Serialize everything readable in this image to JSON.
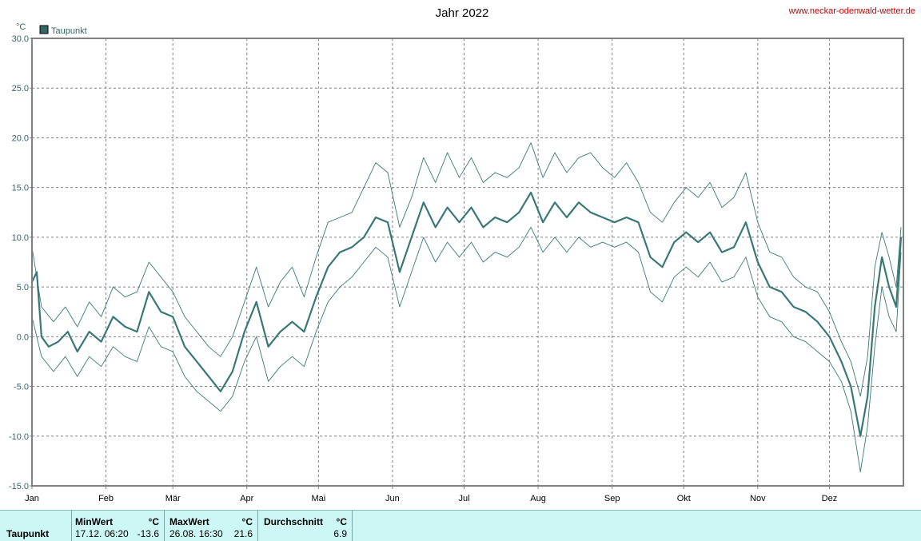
{
  "site": "www.neckar-odenwald-wetter.de",
  "chart_data": {
    "type": "line",
    "title": "Jahr 2022",
    "unit": "°C",
    "legend": [
      "Taupunkt"
    ],
    "legend_position": "top-left",
    "grid": true,
    "ylim": [
      -15,
      30
    ],
    "yticks": [
      "30.0",
      "25.0",
      "20.0",
      "15.0",
      "10.0",
      "5.0",
      "0.0",
      "-5.0",
      "-10.0",
      "-15.0"
    ],
    "months": [
      "Jan",
      "Feb",
      "Mär",
      "Apr",
      "Mai",
      "Jun",
      "Jul",
      "Aug",
      "Sep",
      "Okt",
      "Nov",
      "Dez"
    ],
    "colors": {
      "series": "#3a7878",
      "grid": "#808080"
    },
    "series": [
      {
        "name": "Taupunkt",
        "values": [
          [
            1,
            5.5
          ],
          [
            3,
            6.5
          ],
          [
            5,
            0.0
          ],
          [
            8,
            -1.0
          ],
          [
            12,
            -0.5
          ],
          [
            16,
            0.5
          ],
          [
            20,
            -1.5
          ],
          [
            25,
            0.5
          ],
          [
            30,
            -0.5
          ],
          [
            35,
            2.0
          ],
          [
            40,
            1.0
          ],
          [
            45,
            0.5
          ],
          [
            50,
            4.5
          ],
          [
            55,
            2.5
          ],
          [
            60,
            2.0
          ],
          [
            65,
            -1.0
          ],
          [
            70,
            -2.5
          ],
          [
            75,
            -4.0
          ],
          [
            80,
            -5.5
          ],
          [
            85,
            -3.5
          ],
          [
            90,
            0.5
          ],
          [
            95,
            3.5
          ],
          [
            100,
            -1.0
          ],
          [
            105,
            0.5
          ],
          [
            110,
            1.5
          ],
          [
            115,
            0.5
          ],
          [
            120,
            4.0
          ],
          [
            125,
            7.0
          ],
          [
            130,
            8.5
          ],
          [
            135,
            9.0
          ],
          [
            140,
            10.0
          ],
          [
            145,
            12.0
          ],
          [
            150,
            11.5
          ],
          [
            155,
            6.5
          ],
          [
            160,
            10.0
          ],
          [
            165,
            13.5
          ],
          [
            170,
            11.0
          ],
          [
            175,
            13.0
          ],
          [
            180,
            11.5
          ],
          [
            185,
            13.0
          ],
          [
            190,
            11.0
          ],
          [
            195,
            12.0
          ],
          [
            200,
            11.5
          ],
          [
            205,
            12.5
          ],
          [
            210,
            14.5
          ],
          [
            215,
            11.5
          ],
          [
            220,
            13.5
          ],
          [
            225,
            12.0
          ],
          [
            230,
            13.5
          ],
          [
            235,
            12.5
          ],
          [
            240,
            12.0
          ],
          [
            245,
            11.5
          ],
          [
            250,
            12.0
          ],
          [
            255,
            11.5
          ],
          [
            260,
            8.0
          ],
          [
            265,
            7.0
          ],
          [
            270,
            9.5
          ],
          [
            275,
            10.5
          ],
          [
            280,
            9.5
          ],
          [
            285,
            10.5
          ],
          [
            290,
            8.5
          ],
          [
            295,
            9.0
          ],
          [
            300,
            11.5
          ],
          [
            305,
            7.5
          ],
          [
            310,
            5.0
          ],
          [
            315,
            4.5
          ],
          [
            320,
            3.0
          ],
          [
            325,
            2.5
          ],
          [
            330,
            1.5
          ],
          [
            335,
            0.0
          ],
          [
            340,
            -2.5
          ],
          [
            344,
            -5.0
          ],
          [
            348,
            -10.0
          ],
          [
            351,
            -6.0
          ],
          [
            354,
            3.0
          ],
          [
            357,
            8.0
          ],
          [
            360,
            5.0
          ],
          [
            363,
            3.0
          ],
          [
            365,
            10.0
          ]
        ]
      },
      {
        "name": "",
        "values": [
          [
            1,
            9.0
          ],
          [
            5,
            3.0
          ],
          [
            10,
            1.5
          ],
          [
            15,
            3.0
          ],
          [
            20,
            1.0
          ],
          [
            25,
            3.5
          ],
          [
            30,
            2.0
          ],
          [
            35,
            5.0
          ],
          [
            40,
            4.0
          ],
          [
            45,
            4.5
          ],
          [
            50,
            7.5
          ],
          [
            55,
            6.0
          ],
          [
            60,
            4.5
          ],
          [
            65,
            2.0
          ],
          [
            70,
            0.5
          ],
          [
            75,
            -1.0
          ],
          [
            80,
            -2.0
          ],
          [
            85,
            0.0
          ],
          [
            90,
            3.5
          ],
          [
            95,
            7.0
          ],
          [
            100,
            3.0
          ],
          [
            105,
            5.5
          ],
          [
            110,
            7.0
          ],
          [
            115,
            4.0
          ],
          [
            120,
            8.0
          ],
          [
            125,
            11.5
          ],
          [
            130,
            12.0
          ],
          [
            135,
            12.5
          ],
          [
            140,
            15.0
          ],
          [
            145,
            17.5
          ],
          [
            150,
            16.5
          ],
          [
            155,
            11.0
          ],
          [
            160,
            14.0
          ],
          [
            165,
            18.0
          ],
          [
            170,
            15.5
          ],
          [
            175,
            18.5
          ],
          [
            180,
            16.0
          ],
          [
            185,
            18.0
          ],
          [
            190,
            15.5
          ],
          [
            195,
            16.5
          ],
          [
            200,
            16.0
          ],
          [
            205,
            17.0
          ],
          [
            210,
            19.5
          ],
          [
            215,
            16.0
          ],
          [
            220,
            18.5
          ],
          [
            225,
            16.5
          ],
          [
            230,
            18.0
          ],
          [
            235,
            18.5
          ],
          [
            240,
            17.0
          ],
          [
            245,
            16.0
          ],
          [
            250,
            17.5
          ],
          [
            255,
            15.5
          ],
          [
            260,
            12.5
          ],
          [
            265,
            11.5
          ],
          [
            270,
            13.5
          ],
          [
            275,
            15.0
          ],
          [
            280,
            14.0
          ],
          [
            285,
            15.5
          ],
          [
            290,
            13.0
          ],
          [
            295,
            14.0
          ],
          [
            300,
            16.5
          ],
          [
            305,
            11.5
          ],
          [
            310,
            8.5
          ],
          [
            315,
            8.0
          ],
          [
            320,
            6.0
          ],
          [
            325,
            5.0
          ],
          [
            330,
            4.5
          ],
          [
            335,
            2.5
          ],
          [
            340,
            -0.5
          ],
          [
            344,
            -2.5
          ],
          [
            348,
            -6.0
          ],
          [
            351,
            -2.0
          ],
          [
            354,
            7.0
          ],
          [
            357,
            10.5
          ],
          [
            360,
            8.0
          ],
          [
            363,
            5.0
          ],
          [
            365,
            11.0
          ]
        ]
      },
      {
        "name": "",
        "values": [
          [
            1,
            2.0
          ],
          [
            5,
            -2.0
          ],
          [
            10,
            -3.5
          ],
          [
            15,
            -2.0
          ],
          [
            20,
            -4.0
          ],
          [
            25,
            -2.0
          ],
          [
            30,
            -3.0
          ],
          [
            35,
            -1.0
          ],
          [
            40,
            -2.0
          ],
          [
            45,
            -2.5
          ],
          [
            50,
            1.0
          ],
          [
            55,
            -1.0
          ],
          [
            60,
            -1.5
          ],
          [
            65,
            -4.0
          ],
          [
            70,
            -5.5
          ],
          [
            75,
            -6.5
          ],
          [
            80,
            -7.5
          ],
          [
            85,
            -6.0
          ],
          [
            90,
            -2.5
          ],
          [
            95,
            0.0
          ],
          [
            100,
            -4.5
          ],
          [
            105,
            -3.0
          ],
          [
            110,
            -2.0
          ],
          [
            115,
            -3.0
          ],
          [
            120,
            0.5
          ],
          [
            125,
            3.5
          ],
          [
            130,
            5.0
          ],
          [
            135,
            6.0
          ],
          [
            140,
            7.5
          ],
          [
            145,
            9.0
          ],
          [
            150,
            8.0
          ],
          [
            155,
            3.0
          ],
          [
            160,
            6.5
          ],
          [
            165,
            10.0
          ],
          [
            170,
            7.5
          ],
          [
            175,
            9.5
          ],
          [
            180,
            8.0
          ],
          [
            185,
            9.5
          ],
          [
            190,
            7.5
          ],
          [
            195,
            8.5
          ],
          [
            200,
            8.0
          ],
          [
            205,
            9.0
          ],
          [
            210,
            11.0
          ],
          [
            215,
            8.5
          ],
          [
            220,
            10.0
          ],
          [
            225,
            8.5
          ],
          [
            230,
            10.0
          ],
          [
            235,
            9.0
          ],
          [
            240,
            9.5
          ],
          [
            245,
            9.0
          ],
          [
            250,
            9.5
          ],
          [
            255,
            8.5
          ],
          [
            260,
            4.5
          ],
          [
            265,
            3.5
          ],
          [
            270,
            6.0
          ],
          [
            275,
            7.0
          ],
          [
            280,
            6.0
          ],
          [
            285,
            7.5
          ],
          [
            290,
            5.5
          ],
          [
            295,
            6.0
          ],
          [
            300,
            8.0
          ],
          [
            305,
            4.0
          ],
          [
            310,
            2.0
          ],
          [
            315,
            1.5
          ],
          [
            320,
            0.0
          ],
          [
            325,
            -0.5
          ],
          [
            330,
            -1.5
          ],
          [
            335,
            -2.5
          ],
          [
            340,
            -4.5
          ],
          [
            344,
            -7.5
          ],
          [
            348,
            -13.6
          ],
          [
            351,
            -9.0
          ],
          [
            354,
            -1.0
          ],
          [
            357,
            5.0
          ],
          [
            360,
            2.0
          ],
          [
            363,
            0.5
          ],
          [
            365,
            8.5
          ]
        ]
      }
    ]
  },
  "summary": {
    "row_label": "Taupunkt",
    "min": {
      "header": "MinWert",
      "unit": "°C",
      "date": "17.12.  06:20",
      "value": "-13.6"
    },
    "max": {
      "header": "MaxWert",
      "unit": "°C",
      "date": "26.08.  16:30",
      "value": "21.6"
    },
    "avg": {
      "header": "Durchschnitt",
      "unit": "°C",
      "value": "6.9"
    }
  }
}
